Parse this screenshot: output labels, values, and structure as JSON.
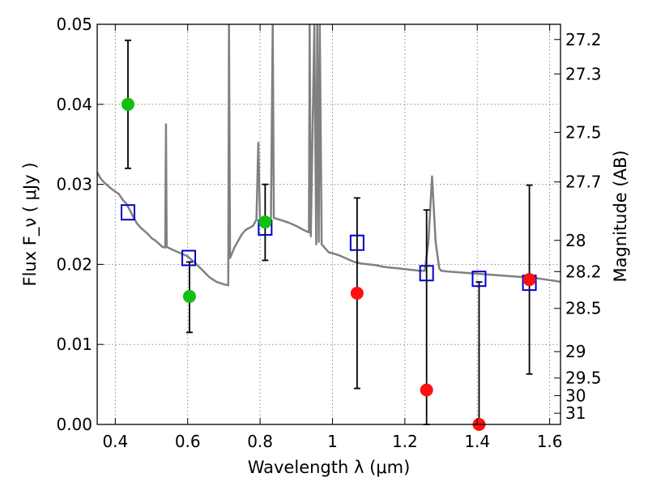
{
  "chart_data": {
    "type": "scatter",
    "xlabel": "Wavelength  λ (μm)",
    "ylabel": "Flux  F_ν  ( μJy )",
    "ylabel_right": "Magnitude (AB)",
    "xlim": [
      0.35,
      1.63
    ],
    "ylim": [
      0,
      0.05
    ],
    "grid": true,
    "x_ticks": [
      0.4,
      0.6,
      0.8,
      1.0,
      1.2,
      1.4,
      1.6
    ],
    "x_tick_labels": [
      "0.4",
      "0.6",
      "0.8",
      "1",
      "1.2",
      "1.4",
      "1.6"
    ],
    "y_ticks": [
      0,
      0.01,
      0.02,
      0.03,
      0.04,
      0.05
    ],
    "y_tick_labels": [
      "0.00",
      "0.01",
      "0.02",
      "0.03",
      "0.04",
      "0.05"
    ],
    "right_ticks": [
      {
        "label": "27.2",
        "flux": 0.0481
      },
      {
        "label": "27.3",
        "flux": 0.0438
      },
      {
        "label": "27.5",
        "flux": 0.0365
      },
      {
        "label": "27.7",
        "flux": 0.0303
      },
      {
        "label": "28",
        "flux": 0.023
      },
      {
        "label": "28.2",
        "flux": 0.0191
      },
      {
        "label": "28.5",
        "flux": 0.0145
      },
      {
        "label": "29",
        "flux": 0.0091
      },
      {
        "label": "29.5",
        "flux": 0.0058
      },
      {
        "label": "30",
        "flux": 0.0036
      },
      {
        "label": "31",
        "flux": 0.0014
      }
    ],
    "colors": {
      "spectrum": "#808080",
      "green_points": "#11c011",
      "red_points": "#ff1010",
      "model_squares": "#0000cc",
      "error_bars": "#000000",
      "grid": "#888888"
    },
    "series": [
      {
        "type": "line",
        "color": "#808080",
        "points": [
          [
            0.35,
            0.0315
          ],
          [
            0.36,
            0.0307
          ],
          [
            0.37,
            0.0302
          ],
          [
            0.38,
            0.0298
          ],
          [
            0.39,
            0.0294
          ],
          [
            0.4,
            0.0291
          ],
          [
            0.41,
            0.0288
          ],
          [
            0.42,
            0.0281
          ],
          [
            0.43,
            0.0276
          ],
          [
            0.44,
            0.0268
          ],
          [
            0.45,
            0.0259
          ],
          [
            0.46,
            0.0251
          ],
          [
            0.47,
            0.0246
          ],
          [
            0.48,
            0.0242
          ],
          [
            0.49,
            0.0238
          ],
          [
            0.5,
            0.0233
          ],
          [
            0.51,
            0.023
          ],
          [
            0.52,
            0.0226
          ],
          [
            0.53,
            0.0222
          ],
          [
            0.538,
            0.0221
          ],
          [
            0.54,
            0.0375
          ],
          [
            0.542,
            0.0222
          ],
          [
            0.55,
            0.022
          ],
          [
            0.57,
            0.0216
          ],
          [
            0.59,
            0.0212
          ],
          [
            0.6,
            0.021
          ],
          [
            0.62,
            0.0202
          ],
          [
            0.64,
            0.0193
          ],
          [
            0.66,
            0.0184
          ],
          [
            0.68,
            0.0178
          ],
          [
            0.7,
            0.0175
          ],
          [
            0.712,
            0.0174
          ],
          [
            0.714,
            0.05
          ],
          [
            0.717,
            0.0208
          ],
          [
            0.73,
            0.0222
          ],
          [
            0.74,
            0.023
          ],
          [
            0.75,
            0.0238
          ],
          [
            0.76,
            0.0243
          ],
          [
            0.78,
            0.0248
          ],
          [
            0.79,
            0.0256
          ],
          [
            0.795,
            0.0352
          ],
          [
            0.8,
            0.0249
          ],
          [
            0.81,
            0.0252
          ],
          [
            0.825,
            0.0255
          ],
          [
            0.83,
            0.0258
          ],
          [
            0.835,
            0.05
          ],
          [
            0.838,
            0.0258
          ],
          [
            0.86,
            0.0255
          ],
          [
            0.88,
            0.0252
          ],
          [
            0.9,
            0.0248
          ],
          [
            0.92,
            0.0243
          ],
          [
            0.935,
            0.024
          ],
          [
            0.937,
            0.05
          ],
          [
            0.94,
            0.0235
          ],
          [
            0.95,
            0.05
          ],
          [
            0.955,
            0.0225
          ],
          [
            0.958,
            0.05
          ],
          [
            0.962,
            0.0228
          ],
          [
            0.965,
            0.05
          ],
          [
            0.97,
            0.0225
          ],
          [
            0.99,
            0.0215
          ],
          [
            1.0,
            0.0214
          ],
          [
            1.02,
            0.0211
          ],
          [
            1.04,
            0.0207
          ],
          [
            1.06,
            0.0203
          ],
          [
            1.08,
            0.0201
          ],
          [
            1.1,
            0.02
          ],
          [
            1.12,
            0.0199
          ],
          [
            1.14,
            0.0197
          ],
          [
            1.16,
            0.0196
          ],
          [
            1.18,
            0.0195
          ],
          [
            1.2,
            0.0194
          ],
          [
            1.22,
            0.0193
          ],
          [
            1.24,
            0.0192
          ],
          [
            1.255,
            0.0192
          ],
          [
            1.265,
            0.0228
          ],
          [
            1.275,
            0.031
          ],
          [
            1.285,
            0.0228
          ],
          [
            1.295,
            0.0195
          ],
          [
            1.3,
            0.0192
          ],
          [
            1.32,
            0.0191
          ],
          [
            1.35,
            0.019
          ],
          [
            1.38,
            0.0189
          ],
          [
            1.41,
            0.0188
          ],
          [
            1.44,
            0.0187
          ],
          [
            1.47,
            0.0186
          ],
          [
            1.5,
            0.0185
          ],
          [
            1.53,
            0.0184
          ],
          [
            1.56,
            0.0183
          ],
          [
            1.59,
            0.0181
          ],
          [
            1.62,
            0.0179
          ],
          [
            1.63,
            0.0178
          ]
        ]
      },
      {
        "type": "scatter",
        "marker": "circle",
        "color": "#11c011",
        "x": [
          0.435,
          0.605,
          0.814
        ],
        "y": [
          0.04,
          0.016,
          0.0253
        ],
        "yerr_low": [
          0.032,
          0.0115,
          0.0205
        ],
        "yerr_high": [
          0.048,
          0.0203,
          0.03
        ]
      },
      {
        "type": "scatter",
        "marker": "circle",
        "color": "#ff1010",
        "x": [
          1.068,
          1.26,
          1.405,
          1.544
        ],
        "y": [
          0.0164,
          0.0043,
          0.0,
          0.0181
        ],
        "yerr_low": [
          0.0045,
          0.0,
          0.0,
          0.0063
        ],
        "yerr_high": [
          0.0283,
          0.0268,
          0.0178,
          0.0299
        ]
      },
      {
        "type": "scatter",
        "marker": "square",
        "color": "#0000cc",
        "x": [
          0.435,
          0.603,
          0.814,
          1.068,
          1.26,
          1.405,
          1.544
        ],
        "y": [
          0.0265,
          0.0208,
          0.0246,
          0.0227,
          0.0189,
          0.0182,
          0.0177
        ]
      }
    ]
  }
}
